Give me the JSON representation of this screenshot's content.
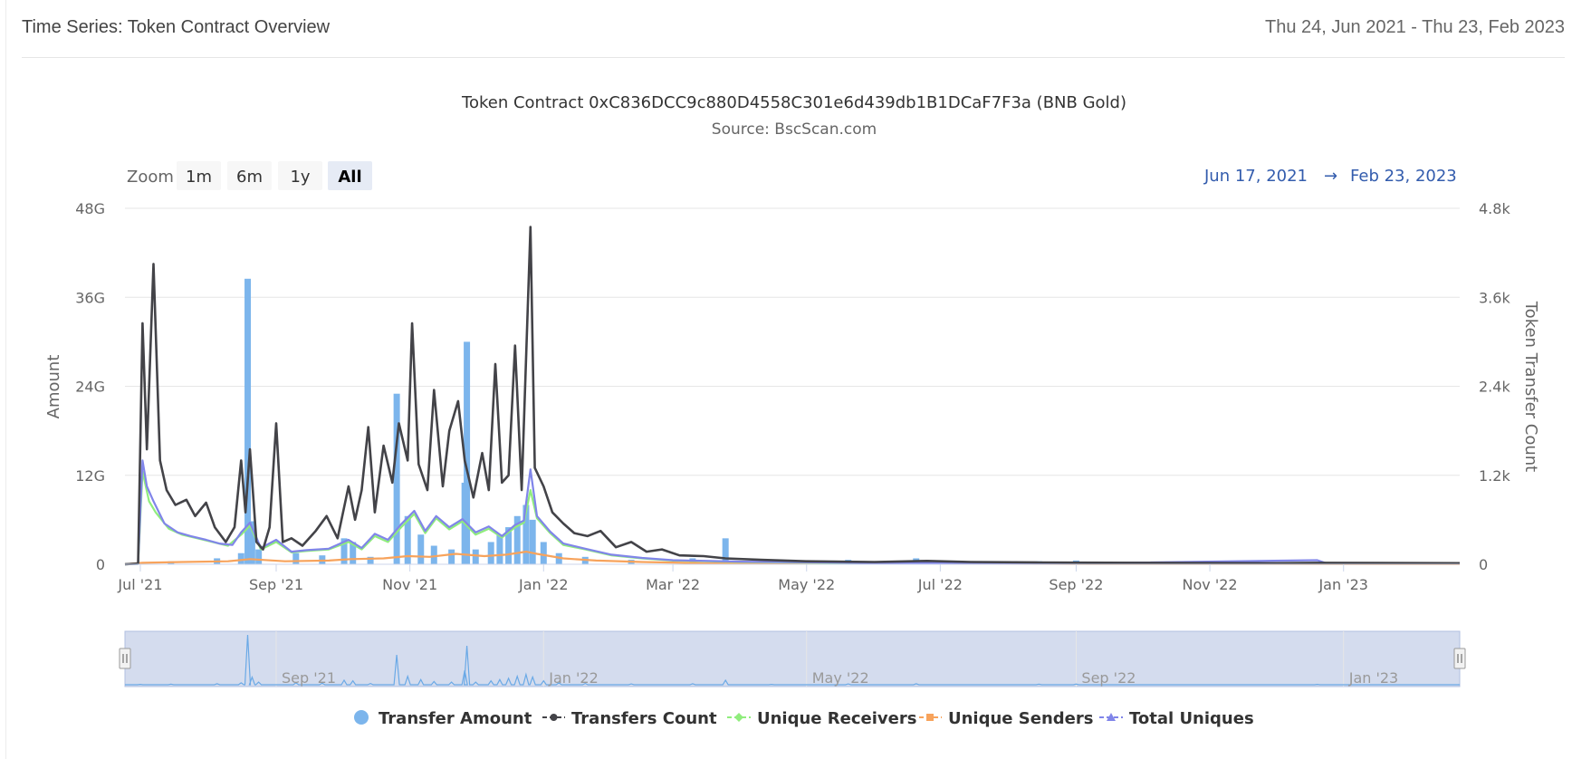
{
  "card": {
    "title": "Time Series: Token Contract Overview",
    "date_range": "Thu 24, Jun 2021 - Thu 23, Feb 2023"
  },
  "chart": {
    "title": "Token Contract 0xC836DCC9c880D4558C301e6d439db1B1DCaF7F3a (BNB Gold)",
    "subtitle": "Source: BscScan.com",
    "zoom_label": "Zoom",
    "zoom_buttons": [
      "1m",
      "6m",
      "1y",
      "All"
    ],
    "zoom_selected": "All",
    "range_from": "Jun 17, 2021",
    "range_arrow": "→",
    "range_to": "Feb 23, 2023"
  },
  "colors": {
    "transfer_amount": "#7cb5ec",
    "transfers_count": "#434348",
    "unique_receivers": "#90ed7d",
    "unique_senders": "#f7a35c",
    "total_uniques": "#8085e9",
    "range_text": "#335cad",
    "navigator_mask": "#ccd6eb"
  },
  "chart_data": {
    "type": "line",
    "x_start": "2021-06-24",
    "x_end": "2023-02-23",
    "x_ticks": [
      "Jul '21",
      "Sep '21",
      "Nov '21",
      "Jan '22",
      "Mar '22",
      "May '22",
      "Jul '22",
      "Sep '22",
      "Nov '22",
      "Jan '23"
    ],
    "y_left": {
      "label": "Amount",
      "ticks": [
        "0",
        "12G",
        "24G",
        "36G",
        "48G"
      ],
      "range": [
        0,
        48000000000
      ]
    },
    "y_right": {
      "label": "Token Transfer Count",
      "ticks": [
        "0",
        "1.2k",
        "2.4k",
        "3.6k",
        "4.8k"
      ],
      "range": [
        0,
        4800
      ]
    },
    "navigator_ticks": [
      "Sep '21",
      "Jan '22",
      "May '22",
      "Sep '22",
      "Jan '23"
    ],
    "legend": [
      "Transfer Amount",
      "Transfers Count",
      "Unique Receivers",
      "Unique Senders",
      "Total Uniques"
    ],
    "series": [
      {
        "name": "Transfer Amount",
        "axis": "left",
        "kind": "column",
        "points": [
          [
            "2021-07-01",
            300000000.0
          ],
          [
            "2021-07-15",
            400000000.0
          ],
          [
            "2021-08-05",
            800000000.0
          ],
          [
            "2021-08-16",
            1500000000.0
          ],
          [
            "2021-08-19",
            38500000000.0
          ],
          [
            "2021-08-21",
            5800000000.0
          ],
          [
            "2021-08-24",
            2000000000.0
          ],
          [
            "2021-09-10",
            1500000000.0
          ],
          [
            "2021-09-22",
            1200000000.0
          ],
          [
            "2021-10-02",
            3500000000.0
          ],
          [
            "2021-10-06",
            3000000000.0
          ],
          [
            "2021-10-14",
            1000000000.0
          ],
          [
            "2021-10-26",
            23000000000.0
          ],
          [
            "2021-10-31",
            6500000000.0
          ],
          [
            "2021-11-06",
            4000000000.0
          ],
          [
            "2021-11-12",
            2500000000.0
          ],
          [
            "2021-11-20",
            2000000000.0
          ],
          [
            "2021-11-26",
            11000000000.0
          ],
          [
            "2021-11-27",
            30000000000.0
          ],
          [
            "2021-12-01",
            2000000000.0
          ],
          [
            "2021-12-08",
            3000000000.0
          ],
          [
            "2021-12-12",
            4000000000.0
          ],
          [
            "2021-12-16",
            5000000000.0
          ],
          [
            "2021-12-20",
            6500000000.0
          ],
          [
            "2021-12-24",
            8000000000.0
          ],
          [
            "2021-12-27",
            6000000000.0
          ],
          [
            "2022-01-01",
            3000000000.0
          ],
          [
            "2022-01-08",
            1500000000.0
          ],
          [
            "2022-01-20",
            1000000000.0
          ],
          [
            "2022-02-10",
            600000000.0
          ],
          [
            "2022-03-10",
            800000000.0
          ],
          [
            "2022-03-25",
            3500000000.0
          ],
          [
            "2022-04-15",
            300000000.0
          ],
          [
            "2022-05-20",
            600000000.0
          ],
          [
            "2022-06-20",
            800000000.0
          ],
          [
            "2022-08-15",
            400000000.0
          ],
          [
            "2022-09-01",
            500000000.0
          ],
          [
            "2022-12-20",
            300000000.0
          ]
        ]
      },
      {
        "name": "Transfers Count",
        "axis": "right",
        "kind": "line",
        "points": [
          [
            "2021-06-24",
            0
          ],
          [
            "2021-06-30",
            10
          ],
          [
            "2021-07-02",
            3250
          ],
          [
            "2021-07-04",
            1550
          ],
          [
            "2021-07-07",
            4050
          ],
          [
            "2021-07-10",
            1400
          ],
          [
            "2021-07-13",
            1000
          ],
          [
            "2021-07-17",
            800
          ],
          [
            "2021-07-22",
            870
          ],
          [
            "2021-07-26",
            650
          ],
          [
            "2021-07-31",
            830
          ],
          [
            "2021-08-04",
            500
          ],
          [
            "2021-08-09",
            300
          ],
          [
            "2021-08-13",
            500
          ],
          [
            "2021-08-16",
            1400
          ],
          [
            "2021-08-18",
            700
          ],
          [
            "2021-08-20",
            1550
          ],
          [
            "2021-08-23",
            300
          ],
          [
            "2021-08-26",
            200
          ],
          [
            "2021-08-29",
            500
          ],
          [
            "2021-09-01",
            1900
          ],
          [
            "2021-09-04",
            300
          ],
          [
            "2021-09-08",
            350
          ],
          [
            "2021-09-13",
            250
          ],
          [
            "2021-09-19",
            450
          ],
          [
            "2021-09-24",
            650
          ],
          [
            "2021-09-29",
            350
          ],
          [
            "2021-10-04",
            1050
          ],
          [
            "2021-10-07",
            600
          ],
          [
            "2021-10-10",
            1000
          ],
          [
            "2021-10-13",
            1850
          ],
          [
            "2021-10-16",
            700
          ],
          [
            "2021-10-20",
            1600
          ],
          [
            "2021-10-24",
            1100
          ],
          [
            "2021-10-27",
            1900
          ],
          [
            "2021-10-31",
            1400
          ],
          [
            "2021-11-02",
            3250
          ],
          [
            "2021-11-05",
            1350
          ],
          [
            "2021-11-09",
            1000
          ],
          [
            "2021-11-12",
            2350
          ],
          [
            "2021-11-16",
            1050
          ],
          [
            "2021-11-19",
            1800
          ],
          [
            "2021-11-23",
            2200
          ],
          [
            "2021-11-26",
            1400
          ],
          [
            "2021-11-30",
            900
          ],
          [
            "2021-12-04",
            1500
          ],
          [
            "2021-12-07",
            1000
          ],
          [
            "2021-12-10",
            2700
          ],
          [
            "2021-12-13",
            1100
          ],
          [
            "2021-12-16",
            1200
          ],
          [
            "2021-12-19",
            2950
          ],
          [
            "2021-12-22",
            1000
          ],
          [
            "2021-12-26",
            4550
          ],
          [
            "2021-12-28",
            1300
          ],
          [
            "2022-01-01",
            1050
          ],
          [
            "2022-01-05",
            700
          ],
          [
            "2022-01-10",
            550
          ],
          [
            "2022-01-15",
            420
          ],
          [
            "2022-01-21",
            380
          ],
          [
            "2022-01-27",
            450
          ],
          [
            "2022-02-03",
            230
          ],
          [
            "2022-02-10",
            300
          ],
          [
            "2022-02-17",
            170
          ],
          [
            "2022-02-24",
            200
          ],
          [
            "2022-03-04",
            120
          ],
          [
            "2022-03-15",
            110
          ],
          [
            "2022-03-25",
            80
          ],
          [
            "2022-04-10",
            60
          ],
          [
            "2022-05-01",
            40
          ],
          [
            "2022-06-01",
            30
          ],
          [
            "2022-06-25",
            45
          ],
          [
            "2022-07-15",
            30
          ],
          [
            "2022-08-15",
            25
          ],
          [
            "2022-10-01",
            20
          ],
          [
            "2022-12-01",
            15
          ],
          [
            "2022-12-20",
            20
          ],
          [
            "2023-02-23",
            15
          ]
        ]
      },
      {
        "name": "Unique Receivers",
        "axis": "right",
        "kind": "line",
        "points": [
          [
            "2021-06-24",
            0
          ],
          [
            "2021-06-30",
            5
          ],
          [
            "2021-07-02",
            1250
          ],
          [
            "2021-07-05",
            850
          ],
          [
            "2021-07-08",
            700
          ],
          [
            "2021-07-14",
            480
          ],
          [
            "2021-07-20",
            400
          ],
          [
            "2021-07-27",
            350
          ],
          [
            "2021-08-03",
            300
          ],
          [
            "2021-08-10",
            250
          ],
          [
            "2021-08-16",
            400
          ],
          [
            "2021-08-20",
            520
          ],
          [
            "2021-08-25",
            200
          ],
          [
            "2021-09-01",
            300
          ],
          [
            "2021-09-08",
            160
          ],
          [
            "2021-09-15",
            180
          ],
          [
            "2021-09-25",
            200
          ],
          [
            "2021-10-04",
            300
          ],
          [
            "2021-10-10",
            200
          ],
          [
            "2021-10-16",
            380
          ],
          [
            "2021-10-22",
            300
          ],
          [
            "2021-10-28",
            500
          ],
          [
            "2021-11-03",
            680
          ],
          [
            "2021-11-08",
            420
          ],
          [
            "2021-11-13",
            620
          ],
          [
            "2021-11-19",
            470
          ],
          [
            "2021-11-25",
            580
          ],
          [
            "2021-12-01",
            400
          ],
          [
            "2021-12-07",
            480
          ],
          [
            "2021-12-13",
            360
          ],
          [
            "2021-12-19",
            500
          ],
          [
            "2021-12-23",
            560
          ],
          [
            "2021-12-26",
            1000
          ],
          [
            "2021-12-29",
            620
          ],
          [
            "2022-01-04",
            420
          ],
          [
            "2022-01-10",
            260
          ],
          [
            "2022-01-20",
            200
          ],
          [
            "2022-02-01",
            120
          ],
          [
            "2022-02-15",
            80
          ],
          [
            "2022-03-01",
            50
          ],
          [
            "2022-04-01",
            30
          ],
          [
            "2022-06-01",
            15
          ],
          [
            "2022-09-01",
            10
          ],
          [
            "2022-12-20",
            18
          ],
          [
            "2023-02-23",
            8
          ]
        ]
      },
      {
        "name": "Unique Senders",
        "axis": "right",
        "kind": "line",
        "points": [
          [
            "2021-06-24",
            0
          ],
          [
            "2021-07-02",
            20
          ],
          [
            "2021-07-20",
            30
          ],
          [
            "2021-08-10",
            40
          ],
          [
            "2021-08-20",
            70
          ],
          [
            "2021-09-05",
            40
          ],
          [
            "2021-09-25",
            50
          ],
          [
            "2021-10-05",
            70
          ],
          [
            "2021-10-20",
            80
          ],
          [
            "2021-10-31",
            110
          ],
          [
            "2021-11-10",
            100
          ],
          [
            "2021-11-22",
            140
          ],
          [
            "2021-12-05",
            110
          ],
          [
            "2021-12-15",
            130
          ],
          [
            "2021-12-24",
            170
          ],
          [
            "2021-12-29",
            140
          ],
          [
            "2022-01-10",
            80
          ],
          [
            "2022-01-25",
            50
          ],
          [
            "2022-02-15",
            30
          ],
          [
            "2022-03-15",
            15
          ],
          [
            "2022-05-01",
            8
          ],
          [
            "2022-09-01",
            5
          ],
          [
            "2023-02-23",
            3
          ]
        ]
      },
      {
        "name": "Total Uniques",
        "axis": "right",
        "kind": "line",
        "points": [
          [
            "2021-06-24",
            0
          ],
          [
            "2021-06-30",
            5
          ],
          [
            "2021-07-02",
            1400
          ],
          [
            "2021-07-04",
            1050
          ],
          [
            "2021-07-07",
            850
          ],
          [
            "2021-07-12",
            550
          ],
          [
            "2021-07-18",
            430
          ],
          [
            "2021-07-24",
            380
          ],
          [
            "2021-07-31",
            330
          ],
          [
            "2021-08-06",
            280
          ],
          [
            "2021-08-12",
            260
          ],
          [
            "2021-08-16",
            430
          ],
          [
            "2021-08-20",
            560
          ],
          [
            "2021-08-25",
            220
          ],
          [
            "2021-09-01",
            330
          ],
          [
            "2021-09-08",
            170
          ],
          [
            "2021-09-15",
            190
          ],
          [
            "2021-09-25",
            210
          ],
          [
            "2021-10-04",
            330
          ],
          [
            "2021-10-10",
            220
          ],
          [
            "2021-10-16",
            410
          ],
          [
            "2021-10-22",
            330
          ],
          [
            "2021-10-28",
            540
          ],
          [
            "2021-11-03",
            720
          ],
          [
            "2021-11-08",
            450
          ],
          [
            "2021-11-13",
            650
          ],
          [
            "2021-11-19",
            500
          ],
          [
            "2021-11-25",
            610
          ],
          [
            "2021-12-01",
            430
          ],
          [
            "2021-12-07",
            510
          ],
          [
            "2021-12-13",
            380
          ],
          [
            "2021-12-19",
            530
          ],
          [
            "2021-12-23",
            590
          ],
          [
            "2021-12-26",
            1280
          ],
          [
            "2021-12-29",
            650
          ],
          [
            "2022-01-04",
            440
          ],
          [
            "2022-01-10",
            280
          ],
          [
            "2022-01-20",
            210
          ],
          [
            "2022-02-01",
            130
          ],
          [
            "2022-02-15",
            85
          ],
          [
            "2022-03-01",
            55
          ],
          [
            "2022-04-01",
            35
          ],
          [
            "2022-06-01",
            18
          ],
          [
            "2022-09-01",
            12
          ],
          [
            "2022-12-20",
            55
          ],
          [
            "2022-12-24",
            15
          ],
          [
            "2023-02-23",
            10
          ]
        ]
      }
    ]
  }
}
